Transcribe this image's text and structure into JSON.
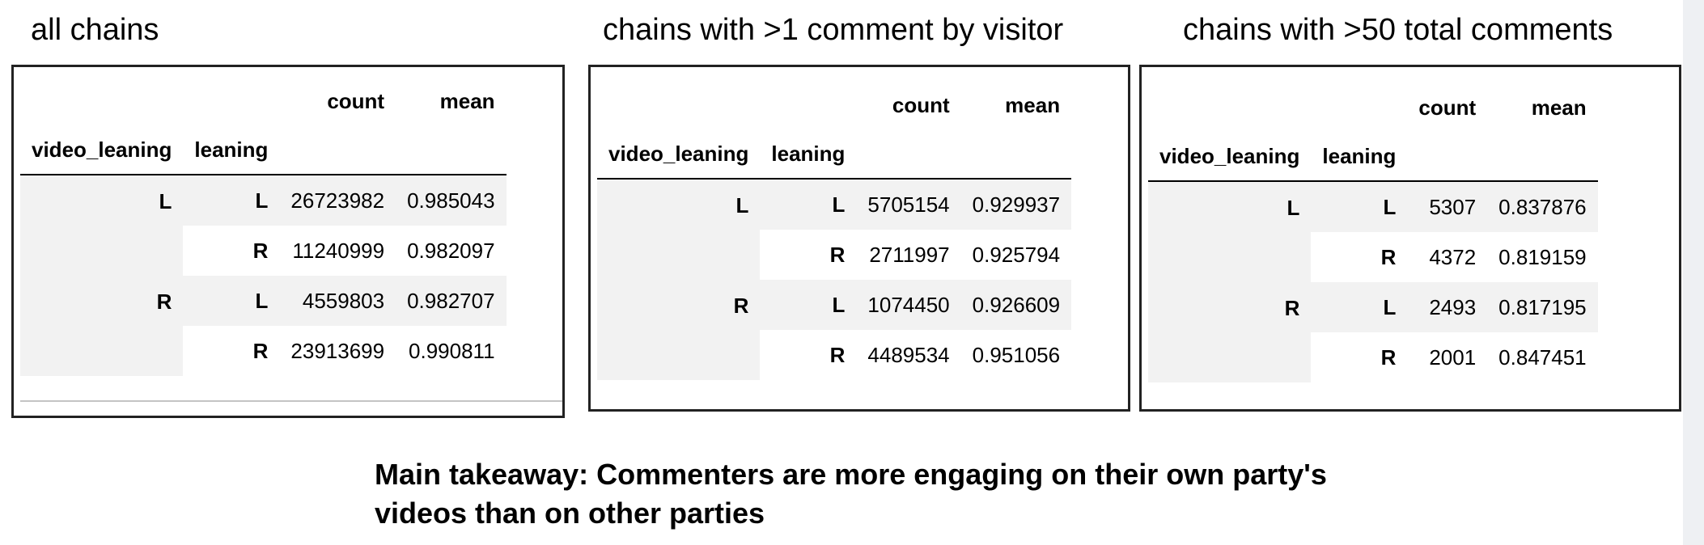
{
  "panels": [
    {
      "title": "all chains",
      "columns": [
        "count",
        "mean"
      ],
      "index_names": [
        "video_leaning",
        "leaning"
      ],
      "rows": [
        {
          "video_leaning": "L",
          "leaning": "L",
          "count": "26723982",
          "mean": "0.985043"
        },
        {
          "video_leaning": "",
          "leaning": "R",
          "count": "11240999",
          "mean": "0.982097"
        },
        {
          "video_leaning": "R",
          "leaning": "L",
          "count": "4559803",
          "mean": "0.982707"
        },
        {
          "video_leaning": "",
          "leaning": "R",
          "count": "23913699",
          "mean": "0.990811"
        }
      ]
    },
    {
      "title": "chains with >1 comment by visitor",
      "columns": [
        "count",
        "mean"
      ],
      "index_names": [
        "video_leaning",
        "leaning"
      ],
      "rows": [
        {
          "video_leaning": "L",
          "leaning": "L",
          "count": "5705154",
          "mean": "0.929937"
        },
        {
          "video_leaning": "",
          "leaning": "R",
          "count": "2711997",
          "mean": "0.925794"
        },
        {
          "video_leaning": "R",
          "leaning": "L",
          "count": "1074450",
          "mean": "0.926609"
        },
        {
          "video_leaning": "",
          "leaning": "R",
          "count": "4489534",
          "mean": "0.951056"
        }
      ]
    },
    {
      "title": "chains with >50 total comments",
      "columns": [
        "count",
        "mean"
      ],
      "index_names": [
        "video_leaning",
        "leaning"
      ],
      "rows": [
        {
          "video_leaning": "L",
          "leaning": "L",
          "count": "5307",
          "mean": "0.837876"
        },
        {
          "video_leaning": "",
          "leaning": "R",
          "count": "4372",
          "mean": "0.819159"
        },
        {
          "video_leaning": "R",
          "leaning": "L",
          "count": "2493",
          "mean": "0.817195"
        },
        {
          "video_leaning": "",
          "leaning": "R",
          "count": "2001",
          "mean": "0.847451"
        }
      ]
    }
  ],
  "takeaway": {
    "line1": "Main takeaway: Commenters are more engaging on their own party's",
    "line2": "videos than on other parties"
  }
}
